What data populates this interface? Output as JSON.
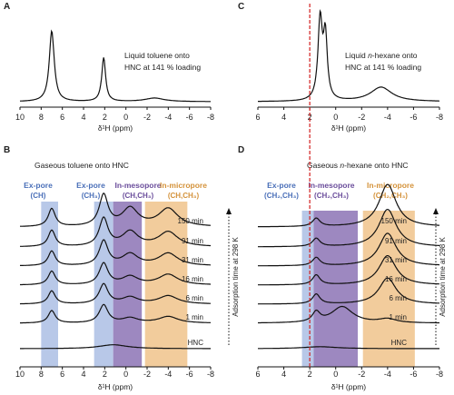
{
  "chart_data": [
    {
      "id": "A",
      "type": "line",
      "panel_label": "A",
      "annotation": [
        "Liquid toluene onto",
        "HNC at 141 % loading"
      ],
      "xlabel": "δ¹H (ppm)",
      "xlim": [
        10,
        -8
      ],
      "xticks": [
        "10",
        "8",
        "6",
        "4",
        "2",
        "0",
        "-2",
        "-4",
        "-6",
        "-8"
      ],
      "series": [
        {
          "peaks": [
            {
              "center": 7.0,
              "height": 1.0,
              "width": 0.28
            },
            {
              "center": 2.1,
              "height": 0.62,
              "width": 0.22
            },
            {
              "center": -2.7,
              "height": 0.05,
              "width": 1.1
            }
          ]
        }
      ]
    },
    {
      "id": "C",
      "type": "line",
      "panel_label": "C",
      "annotation": [
        "Liquid ",
        "n",
        "-hexane onto",
        "HNC at 141 % loading"
      ],
      "xlabel": "δ¹H (ppm)",
      "xlim": [
        6,
        -8
      ],
      "xticks": [
        "6",
        "4",
        "2",
        "0",
        "-2",
        "-4",
        "-6",
        "-8"
      ],
      "reference_line_ppm": 2.0,
      "series": [
        {
          "peaks": [
            {
              "center": 1.2,
              "height": 1.0,
              "width": 0.2
            },
            {
              "center": 0.8,
              "height": 0.78,
              "width": 0.18
            },
            {
              "center": -3.5,
              "height": 0.18,
              "width": 1.0
            }
          ]
        }
      ]
    },
    {
      "id": "B",
      "type": "line",
      "panel_label": "B",
      "title": "Gaseous toluene onto HNC",
      "xlabel": "δ¹H (ppm)",
      "ylabel": "Adsorption time at 298 K",
      "xlim": [
        10,
        -8
      ],
      "xticks": [
        "10",
        "8",
        "6",
        "4",
        "2",
        "0",
        "-2",
        "-4",
        "-6",
        "-8"
      ],
      "bands": [
        {
          "name": "Ex-pore",
          "sub": "(CH)",
          "from": 8.0,
          "to": 6.4,
          "color": "#b8c8e8"
        },
        {
          "name": "Ex-pore",
          "sub": "(CH₃)",
          "from": 3.0,
          "to": 1.2,
          "color": "#b8c8e8"
        },
        {
          "name": "In-mesopore",
          "sub": "(CH,CH₃)",
          "from": 1.2,
          "to": -1.5,
          "color": "#9d88c0"
        },
        {
          "name": "In-micropore",
          "sub": "(CH,CH₃)",
          "from": -1.8,
          "to": -5.8,
          "color": "#f2cc9c"
        }
      ],
      "series": [
        {
          "name": "150 min",
          "peaks": [
            {
              "center": 7.0,
              "height": 0.55,
              "width": 0.4
            },
            {
              "center": 2.1,
              "height": 0.95,
              "width": 0.5
            },
            {
              "center": -0.4,
              "height": 0.55,
              "width": 0.9
            },
            {
              "center": -4.0,
              "height": 0.55,
              "width": 1.1
            }
          ]
        },
        {
          "name": "91 min",
          "peaks": [
            {
              "center": 7.0,
              "height": 0.5,
              "width": 0.4
            },
            {
              "center": 2.1,
              "height": 0.85,
              "width": 0.5
            },
            {
              "center": -0.4,
              "height": 0.45,
              "width": 0.9
            },
            {
              "center": -4.0,
              "height": 0.45,
              "width": 1.1
            }
          ]
        },
        {
          "name": "31 min",
          "peaks": [
            {
              "center": 7.0,
              "height": 0.45,
              "width": 0.4
            },
            {
              "center": 2.1,
              "height": 0.75,
              "width": 0.5
            },
            {
              "center": -0.4,
              "height": 0.35,
              "width": 0.9
            },
            {
              "center": -4.0,
              "height": 0.38,
              "width": 1.1
            }
          ]
        },
        {
          "name": "16 min",
          "peaks": [
            {
              "center": 7.0,
              "height": 0.42,
              "width": 0.4
            },
            {
              "center": 2.1,
              "height": 0.65,
              "width": 0.5
            },
            {
              "center": -0.4,
              "height": 0.25,
              "width": 0.9
            },
            {
              "center": -4.0,
              "height": 0.32,
              "width": 1.1
            }
          ]
        },
        {
          "name": "6 min",
          "peaks": [
            {
              "center": 7.0,
              "height": 0.4,
              "width": 0.4
            },
            {
              "center": 2.1,
              "height": 0.6,
              "width": 0.5
            },
            {
              "center": -0.4,
              "height": 0.2,
              "width": 0.9
            },
            {
              "center": -4.0,
              "height": 0.25,
              "width": 1.1
            }
          ]
        },
        {
          "name": "1 min",
          "peaks": [
            {
              "center": 7.0,
              "height": 0.38,
              "width": 0.4
            },
            {
              "center": 2.1,
              "height": 0.55,
              "width": 0.5
            },
            {
              "center": -0.4,
              "height": 0.15,
              "width": 0.9
            },
            {
              "center": -4.0,
              "height": 0.2,
              "width": 1.1
            }
          ]
        },
        {
          "name": "HNC",
          "peaks": [
            {
              "center": 1.2,
              "height": 0.12,
              "width": 1.6
            }
          ]
        }
      ]
    },
    {
      "id": "D",
      "type": "line",
      "panel_label": "D",
      "title": [
        "Gaseous ",
        "n",
        "-hexane onto HNC"
      ],
      "xlabel": "δ¹H (ppm)",
      "ylabel": "Adsorption time at 298 K",
      "xlim": [
        6,
        -8
      ],
      "xticks": [
        "6",
        "4",
        "2",
        "0",
        "-2",
        "-4",
        "-6",
        "-8"
      ],
      "reference_line_ppm": 2.0,
      "bands": [
        {
          "name": "Ex-pore",
          "sub": "(CH₂,CH₃)",
          "from": 2.6,
          "to": 1.7,
          "color": "#b8c8e8"
        },
        {
          "name": "In-mesopore",
          "sub": "(CH₂,CH₃)",
          "from": 1.7,
          "to": -1.7,
          "color": "#9d88c0"
        },
        {
          "name": "In-micropore",
          "sub": "(CH₂,CH₃)",
          "from": -2.1,
          "to": -6.1,
          "color": "#f2cc9c"
        }
      ],
      "series": [
        {
          "name": "150 min",
          "peaks": [
            {
              "center": 1.5,
              "height": 0.25,
              "width": 0.35
            },
            {
              "center": -4.0,
              "height": 1.3,
              "width": 0.8
            }
          ]
        },
        {
          "name": "91 min",
          "peaks": [
            {
              "center": 1.5,
              "height": 0.25,
              "width": 0.35
            },
            {
              "center": -4.0,
              "height": 1.15,
              "width": 0.8
            }
          ]
        },
        {
          "name": "31 min",
          "peaks": [
            {
              "center": 1.5,
              "height": 0.25,
              "width": 0.35
            },
            {
              "center": -4.0,
              "height": 1.0,
              "width": 0.8
            }
          ]
        },
        {
          "name": "16 min",
          "peaks": [
            {
              "center": 1.5,
              "height": 0.3,
              "width": 0.35
            },
            {
              "center": -4.0,
              "height": 0.9,
              "width": 0.8
            }
          ]
        },
        {
          "name": "6 min",
          "peaks": [
            {
              "center": 1.5,
              "height": 0.3,
              "width": 0.35
            },
            {
              "center": -4.0,
              "height": 0.8,
              "width": 0.8
            }
          ]
        },
        {
          "name": "1 min",
          "peaks": [
            {
              "center": 1.5,
              "height": 0.3,
              "width": 0.35
            },
            {
              "center": -0.5,
              "height": 0.5,
              "width": 1.0
            },
            {
              "center": -4.0,
              "height": 0.12,
              "width": 0.8
            }
          ]
        },
        {
          "name": "HNC",
          "peaks": [
            {
              "center": 1.2,
              "height": 0.06,
              "width": 1.6
            }
          ]
        }
      ]
    }
  ]
}
